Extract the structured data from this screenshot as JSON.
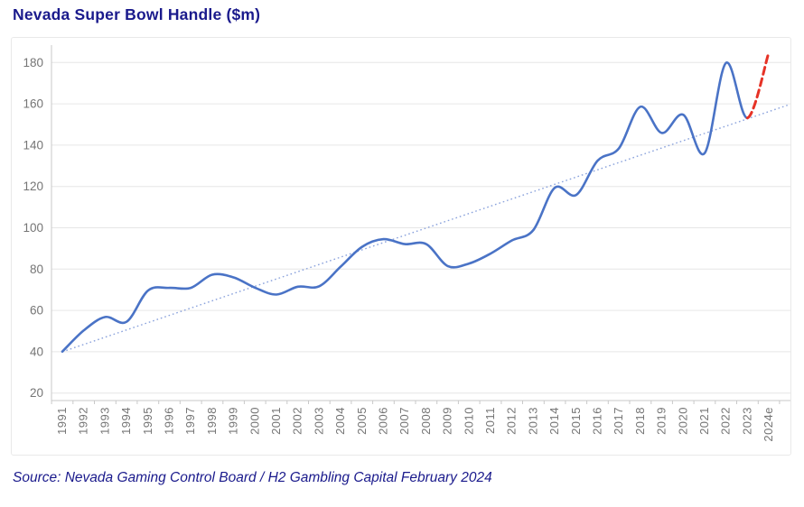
{
  "header": {
    "title": "Nevada Super Bowl Handle ($m)"
  },
  "footer": {
    "source": "Source: Nevada Gaming Control Board / H2 Gambling Capital February 2024"
  },
  "colors": {
    "title_navy": "#1a1a8c",
    "line_blue": "#4a73c6",
    "trend_blue": "#8aa2dc",
    "projection_red": "#e63226",
    "grid": "#e6e6e6",
    "axis": "#c9c9c9",
    "tick_label": "#757575"
  },
  "chart_data": {
    "type": "line",
    "title": "Nevada Super Bowl Handle ($m)",
    "grid": "horizontal",
    "legend": "none",
    "ylim": [
      20,
      180
    ],
    "yticks": [
      20,
      40,
      60,
      80,
      100,
      120,
      140,
      160,
      180
    ],
    "categories": [
      "1991",
      "1992",
      "1993",
      "1994",
      "1995",
      "1996",
      "1997",
      "1998",
      "1999",
      "2000",
      "2001",
      "2002",
      "2003",
      "2004",
      "2005",
      "2006",
      "2007",
      "2008",
      "2009",
      "2010",
      "2011",
      "2012",
      "2013",
      "2014",
      "2015",
      "2016",
      "2017",
      "2018",
      "2019",
      "2020",
      "2021",
      "2022",
      "2023",
      "2024e"
    ],
    "series": [
      {
        "name": "Nevada Super Bowl handle",
        "line_style": "solid",
        "color": "#4a73c6",
        "values": [
          40.1,
          50.3,
          56.8,
          54.5,
          69.6,
          70.9,
          70.9,
          77.3,
          76.0,
          71.0,
          67.7,
          71.5,
          71.7,
          81.2,
          90.8,
          94.5,
          92.1,
          92.1,
          81.5,
          82.7,
          87.5,
          93.9,
          98.9,
          119.4,
          115.9,
          132.5,
          138.5,
          158.6,
          145.9,
          154.7,
          136.1,
          179.8,
          153.2
        ]
      },
      {
        "name": "2024 estimate projection",
        "line_style": "dashed",
        "color": "#e63226",
        "categories": [
          "2023",
          "2024e"
        ],
        "values": [
          153.2,
          185
        ]
      },
      {
        "name": "linear trend",
        "line_style": "dotted",
        "color": "#8aa2dc",
        "values_at_ends": [
          40,
          159.5
        ]
      }
    ]
  }
}
